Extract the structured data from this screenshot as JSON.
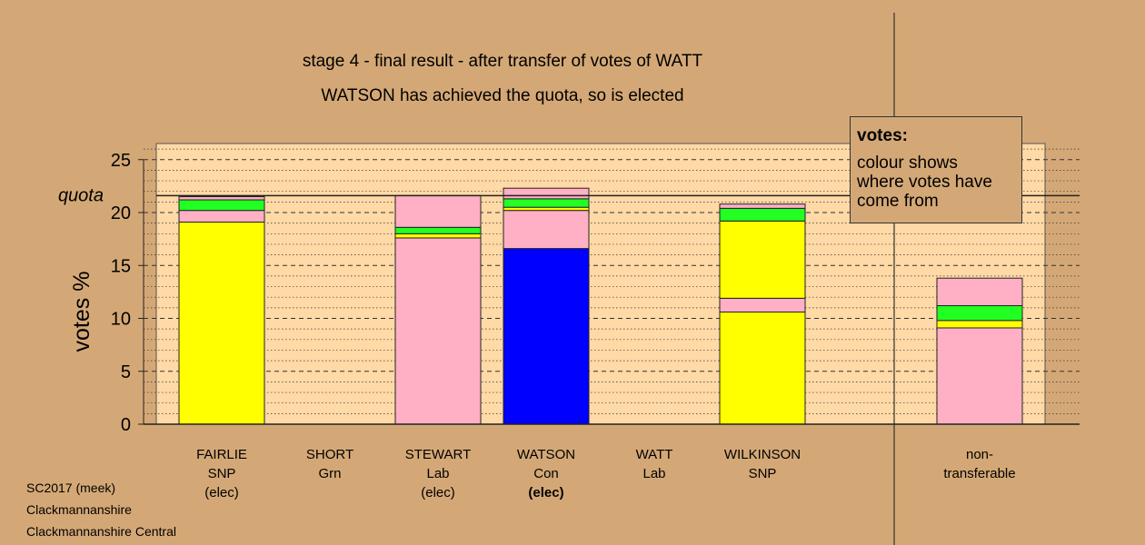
{
  "chart_data": {
    "type": "bar",
    "stacked": true,
    "title": "stage 4 - final result - after transfer of votes of WATT",
    "subtitle": "WATSON has achieved the quota, so is elected",
    "ylabel": "votes %",
    "ylim": [
      0,
      26.5
    ],
    "yticks": [
      "0",
      "5",
      "10",
      "15",
      "20",
      "25"
    ],
    "quota": {
      "label": "quota",
      "value": 21.6
    },
    "grid": true,
    "colors": {
      "SNP": "#ffff00",
      "Grn": "#22ff22",
      "Lab": "#ffb0c4",
      "Con": "#0000ff",
      "background": "#d4a876",
      "plot": "#ffd9a6"
    },
    "categories": [
      {
        "name": "FAIRLIE",
        "party": "SNP",
        "note": "(elec)",
        "bold": false
      },
      {
        "name": "SHORT",
        "party": "Grn",
        "note": "",
        "bold": false
      },
      {
        "name": "STEWART",
        "party": "Lab",
        "note": "(elec)",
        "bold": false
      },
      {
        "name": "WATSON",
        "party": "Con",
        "note": "(elec)",
        "bold": true
      },
      {
        "name": "WATT",
        "party": "Lab",
        "note": "",
        "bold": false
      },
      {
        "name": "WILKINSON",
        "party": "SNP",
        "note": "",
        "bold": false
      },
      {
        "name": "non-",
        "party": "transferable",
        "note": "",
        "bold": false
      }
    ],
    "stacks": [
      [
        {
          "from": "SNP",
          "value": 19.1
        },
        {
          "from": "Lab",
          "value": 1.1
        },
        {
          "from": "Grn",
          "value": 1.0
        },
        {
          "from": "Lab",
          "value": 0.3
        }
      ],
      [],
      [
        {
          "from": "Lab",
          "value": 17.6
        },
        {
          "from": "SNP",
          "value": 0.4
        },
        {
          "from": "Grn",
          "value": 0.6
        },
        {
          "from": "Lab",
          "value": 3.0
        }
      ],
      [
        {
          "from": "Con",
          "value": 16.6
        },
        {
          "from": "Lab",
          "value": 3.6
        },
        {
          "from": "SNP",
          "value": 0.3
        },
        {
          "from": "Grn",
          "value": 0.8
        },
        {
          "from": "Lab",
          "value": 1.0
        }
      ],
      [],
      [
        {
          "from": "SNP",
          "value": 10.6
        },
        {
          "from": "Lab",
          "value": 1.3
        },
        {
          "from": "SNP",
          "value": 7.3
        },
        {
          "from": "Grn",
          "value": 1.2
        },
        {
          "from": "Lab",
          "value": 0.4
        }
      ],
      [
        {
          "from": "Lab",
          "value": 9.1
        },
        {
          "from": "SNP",
          "value": 0.7
        },
        {
          "from": "Grn",
          "value": 1.4
        },
        {
          "from": "Lab",
          "value": 2.6
        }
      ]
    ]
  },
  "legend": {
    "title": "votes:",
    "body": "colour shows where votes have come from"
  },
  "footer": {
    "line1": "SC2017 (meek)",
    "line2": "Clackmannanshire",
    "line3": "Clackmannanshire Central"
  }
}
